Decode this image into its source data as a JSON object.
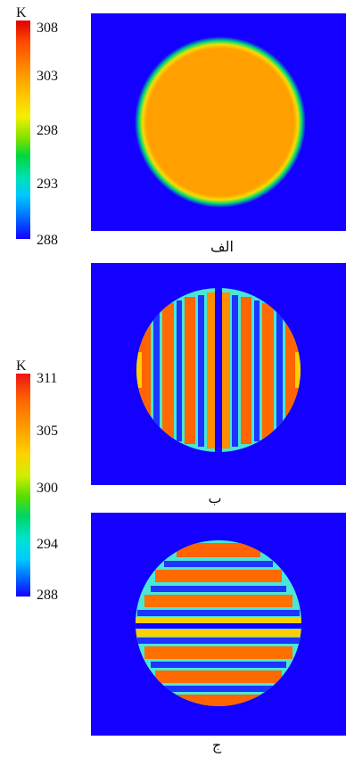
{
  "scales": {
    "upper": {
      "unit": "K",
      "ticks": [
        "308",
        "303",
        "298",
        "293",
        "288"
      ]
    },
    "lower": {
      "unit": "K",
      "ticks": [
        "311",
        "305",
        "300",
        "294",
        "288"
      ]
    }
  },
  "panels": [
    {
      "label": "الف"
    },
    {
      "label": "ب"
    },
    {
      "label": "ج"
    }
  ]
}
